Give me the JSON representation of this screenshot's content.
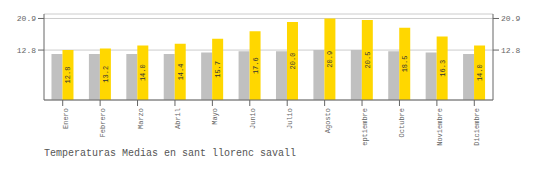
{
  "chart_data": {
    "type": "bar",
    "title": "Temperaturas Medias en sant llorenc savall",
    "categories": [
      "Enero",
      "Febrero",
      "Marzo",
      "Abril",
      "Mayo",
      "Junio",
      "Julio",
      "Agosto",
      "Septiembre",
      "Octubre",
      "Noviembre",
      "Diciembre"
    ],
    "series": [
      {
        "color": "#C0C0C0",
        "values": [
          11.8,
          11.8,
          11.8,
          11.8,
          12.2,
          12.5,
          12.5,
          12.8,
          12.8,
          12.5,
          12.2,
          11.8
        ]
      },
      {
        "color": "#FFD700",
        "values": [
          12.8,
          13.2,
          14.0,
          14.4,
          15.7,
          17.6,
          20.0,
          20.9,
          20.5,
          18.5,
          16.3,
          14.0
        ],
        "value_labels": [
          "12.8",
          "13.2",
          "14.0",
          "14.4",
          "15.7",
          "17.6",
          "20.0",
          "20.9",
          "20.5",
          "18.5",
          "16.3",
          "14.0"
        ]
      }
    ],
    "ylim": [
      0,
      22.0495
    ],
    "yticks": [
      12.8,
      20.9
    ],
    "y2lim": [
      0,
      22.0495
    ],
    "y2ticks": [
      12.8,
      20.9
    ],
    "grid": true,
    "data_labels": true
  }
}
